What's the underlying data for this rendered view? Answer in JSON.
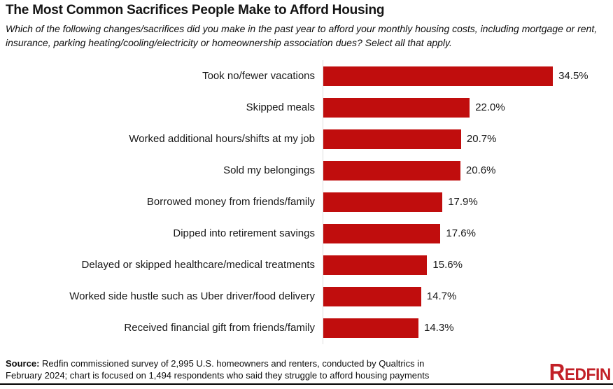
{
  "header": {
    "title": "The Most Common Sacrifices People Make to Afford Housing",
    "subtitle": "Which of the following changes/sacrifices did you make in the past year to afford your monthly housing costs, including mortgage or rent, insurance, parking heating/cooling/electricity or homeownership association dues? Select all that apply."
  },
  "chart_data": {
    "type": "bar",
    "orientation": "horizontal",
    "title": "The Most Common Sacrifices People Make to Afford Housing",
    "categories": [
      "Took no/fewer vacations",
      "Skipped meals",
      "Worked additional hours/shifts at my job",
      "Sold my belongings",
      "Borrowed money from friends/family",
      "Dipped into retirement savings",
      "Delayed or skipped healthcare/medical treatments",
      "Worked side hustle such as Uber driver/food delivery",
      "Received financial gift from friends/family"
    ],
    "values": [
      34.5,
      22.0,
      20.7,
      20.6,
      17.9,
      17.6,
      15.6,
      14.7,
      14.3
    ],
    "value_labels": [
      "34.5%",
      "22.0%",
      "20.7%",
      "20.6%",
      "17.9%",
      "17.6%",
      "15.6%",
      "14.7%",
      "14.3%"
    ],
    "xlabel": "",
    "ylabel": "",
    "xlim": [
      0,
      36
    ],
    "grid": false,
    "legend": false,
    "bar_color": "#c00d0d",
    "axis_color": "#dddddd"
  },
  "footer": {
    "source_label": "Source:",
    "source_text": "Redfin commissioned survey of 2,995 U.S. homeowners and renters, conducted by Qualtrics in February 2024; chart is focused on 1,494 respondents who said they struggle to afford housing payments",
    "brand": "REDFIN",
    "brand_color": "#c22027"
  }
}
